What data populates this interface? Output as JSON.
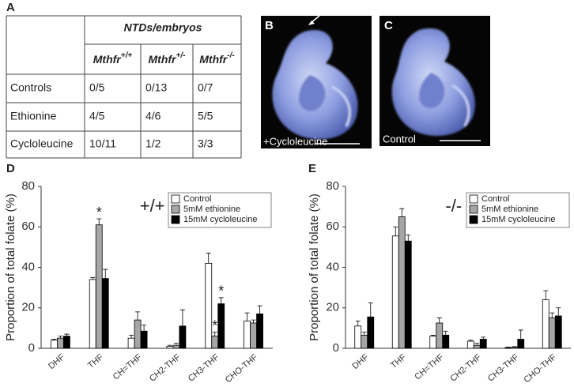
{
  "panels": [
    "A",
    "B",
    "C",
    "D",
    "E"
  ],
  "table": {
    "header": "NTDs/embryos",
    "columns": [
      {
        "base": "Mthfr",
        "sup": "+/+"
      },
      {
        "base": "Mthfr",
        "sup": "+/-"
      },
      {
        "base": "Mthfr",
        "sup": "-/-"
      }
    ],
    "rows": [
      [
        "Controls",
        "0/5",
        "0/13",
        "0/7"
      ],
      [
        "Ethionine",
        "4/5",
        "4/6",
        "5/5"
      ],
      [
        "Cycloleucine",
        "10/11",
        "1/2",
        "3/3"
      ]
    ]
  },
  "images": [
    {
      "caption": "+Cycloleucine"
    },
    {
      "caption": "Control"
    }
  ],
  "chart_data": [
    {
      "type": "bar",
      "annotation": "+/+",
      "ylabel": "Proportion of total folate (%)",
      "categories": [
        "DHF",
        "THF",
        "CH=THF",
        "CH2-THF",
        "CH3-THF",
        "CHO-THF"
      ],
      "ylim": [
        0,
        80
      ],
      "yticks": [
        0,
        20,
        40,
        60,
        80
      ],
      "legend": "upper right",
      "series": [
        {
          "name": "Control",
          "color": "#ffffff",
          "values": [
            4,
            34,
            5,
            1,
            42,
            13.5
          ],
          "errors": [
            0.5,
            1,
            1.5,
            0.5,
            5,
            4
          ],
          "significance": [
            null,
            null,
            null,
            null,
            null,
            null
          ]
        },
        {
          "name": "5mM ethionine",
          "color": "#a6a6a6",
          "values": [
            5,
            61,
            14,
            1.5,
            6,
            12.5
          ],
          "errors": [
            1,
            3,
            4,
            1,
            2,
            1.5
          ],
          "significance": [
            null,
            "*",
            null,
            null,
            "*",
            null
          ]
        },
        {
          "name": "15mM cycloleucine",
          "color": "#000000",
          "values": [
            6,
            34.5,
            8.5,
            11,
            22,
            17
          ],
          "errors": [
            1,
            4.5,
            3,
            8,
            3,
            4
          ],
          "significance": [
            null,
            null,
            null,
            null,
            "*",
            null
          ]
        }
      ]
    },
    {
      "type": "bar",
      "annotation": "-/-",
      "ylabel": "Proportion of total folate (%)",
      "categories": [
        "DHF",
        "THF",
        "CH=THF",
        "CH2-THF",
        "CH3-THF",
        "CHO-THF"
      ],
      "ylim": [
        0,
        80
      ],
      "yticks": [
        0,
        20,
        40,
        60,
        80
      ],
      "legend": "upper right",
      "series": [
        {
          "name": "Control",
          "color": "#ffffff",
          "values": [
            11,
            55.5,
            6,
            3.5,
            0.3,
            24
          ],
          "errors": [
            2.5,
            4.5,
            0.5,
            0.5,
            0.3,
            4.5
          ],
          "significance": [
            null,
            null,
            null,
            null,
            null,
            null
          ]
        },
        {
          "name": "5mM ethionine",
          "color": "#a6a6a6",
          "values": [
            6.5,
            65,
            12.5,
            1.5,
            0.5,
            15
          ],
          "errors": [
            1.5,
            4,
            2.5,
            1,
            0.3,
            2.5
          ],
          "significance": [
            null,
            null,
            null,
            null,
            null,
            null
          ]
        },
        {
          "name": "15mM cycloleucine",
          "color": "#000000",
          "values": [
            15.5,
            53,
            6.5,
            4.5,
            4.5,
            16
          ],
          "errors": [
            7,
            3,
            2,
            1,
            4.5,
            4
          ],
          "significance": [
            null,
            null,
            null,
            null,
            null,
            null
          ]
        }
      ]
    }
  ]
}
